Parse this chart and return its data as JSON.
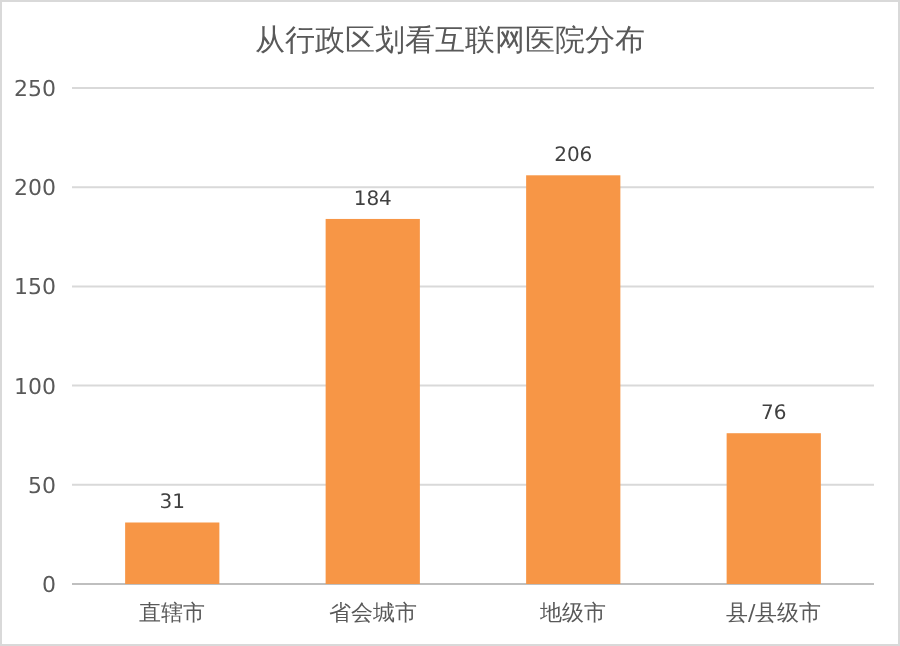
{
  "chart_data": {
    "type": "bar",
    "title": "从行政区划看互联网医院分布",
    "categories": [
      "直辖市",
      "省会城市",
      "地级市",
      "县/县级市"
    ],
    "values": [
      31,
      184,
      206,
      76
    ],
    "color": "#f79646",
    "ylim": [
      0,
      250
    ],
    "yticks": [
      0,
      50,
      100,
      150,
      200,
      250
    ],
    "grid": "y",
    "data_labels": true
  }
}
